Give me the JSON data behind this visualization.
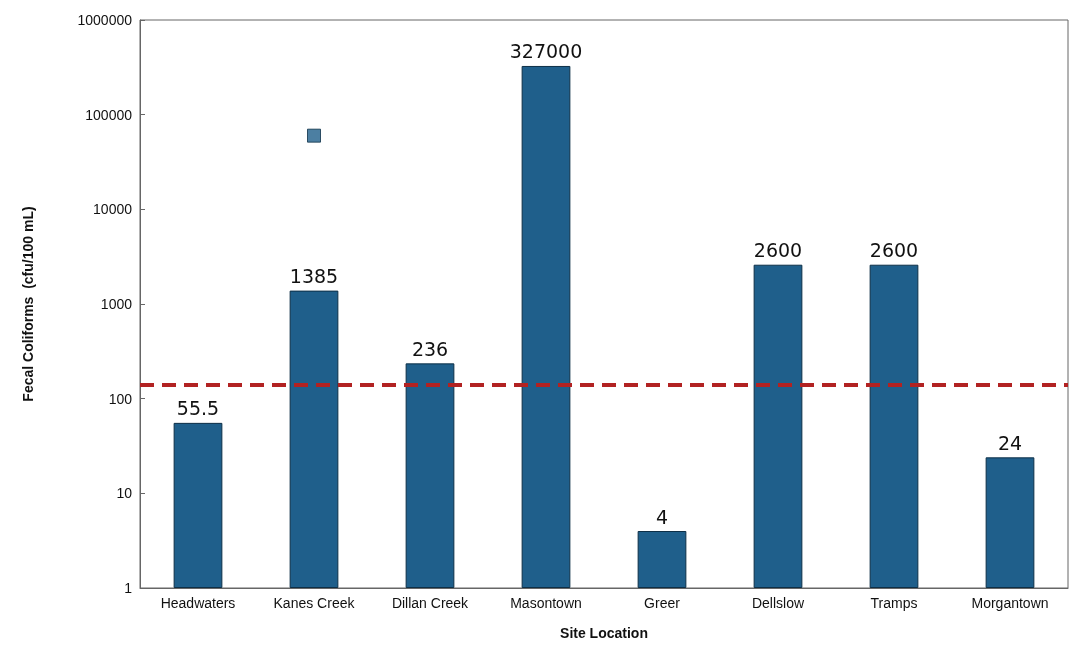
{
  "chart_data": {
    "type": "bar",
    "xlabel": "Site Location",
    "ylabel": "Fecal Coliforms  (cfu/100 mL)",
    "categories": [
      "Headwaters",
      "Kanes Creek",
      "Dillan Creek",
      "Masontown",
      "Greer",
      "Dellslow",
      "Tramps",
      "Morgantown"
    ],
    "series": [
      {
        "color": "#1f5f8b",
        "values": [
          55.5,
          1385,
          236,
          327000,
          4,
          2600,
          2600,
          24
        ],
        "data_labels": true
      },
      {
        "type": "scatter",
        "color": "#1f5f8b",
        "x": [
          "Kanes Creek"
        ],
        "values": [
          60000
        ],
        "marker": "square"
      }
    ],
    "log": "y",
    "ylim": [
      1,
      1000000
    ],
    "yticks": [
      1,
      10,
      100,
      1000,
      10000,
      100000,
      1000000
    ],
    "grid": false,
    "ref_lines": [
      {
        "axis": "y",
        "value": 140,
        "color": "#b22222",
        "line_style": "dashed"
      }
    ]
  }
}
